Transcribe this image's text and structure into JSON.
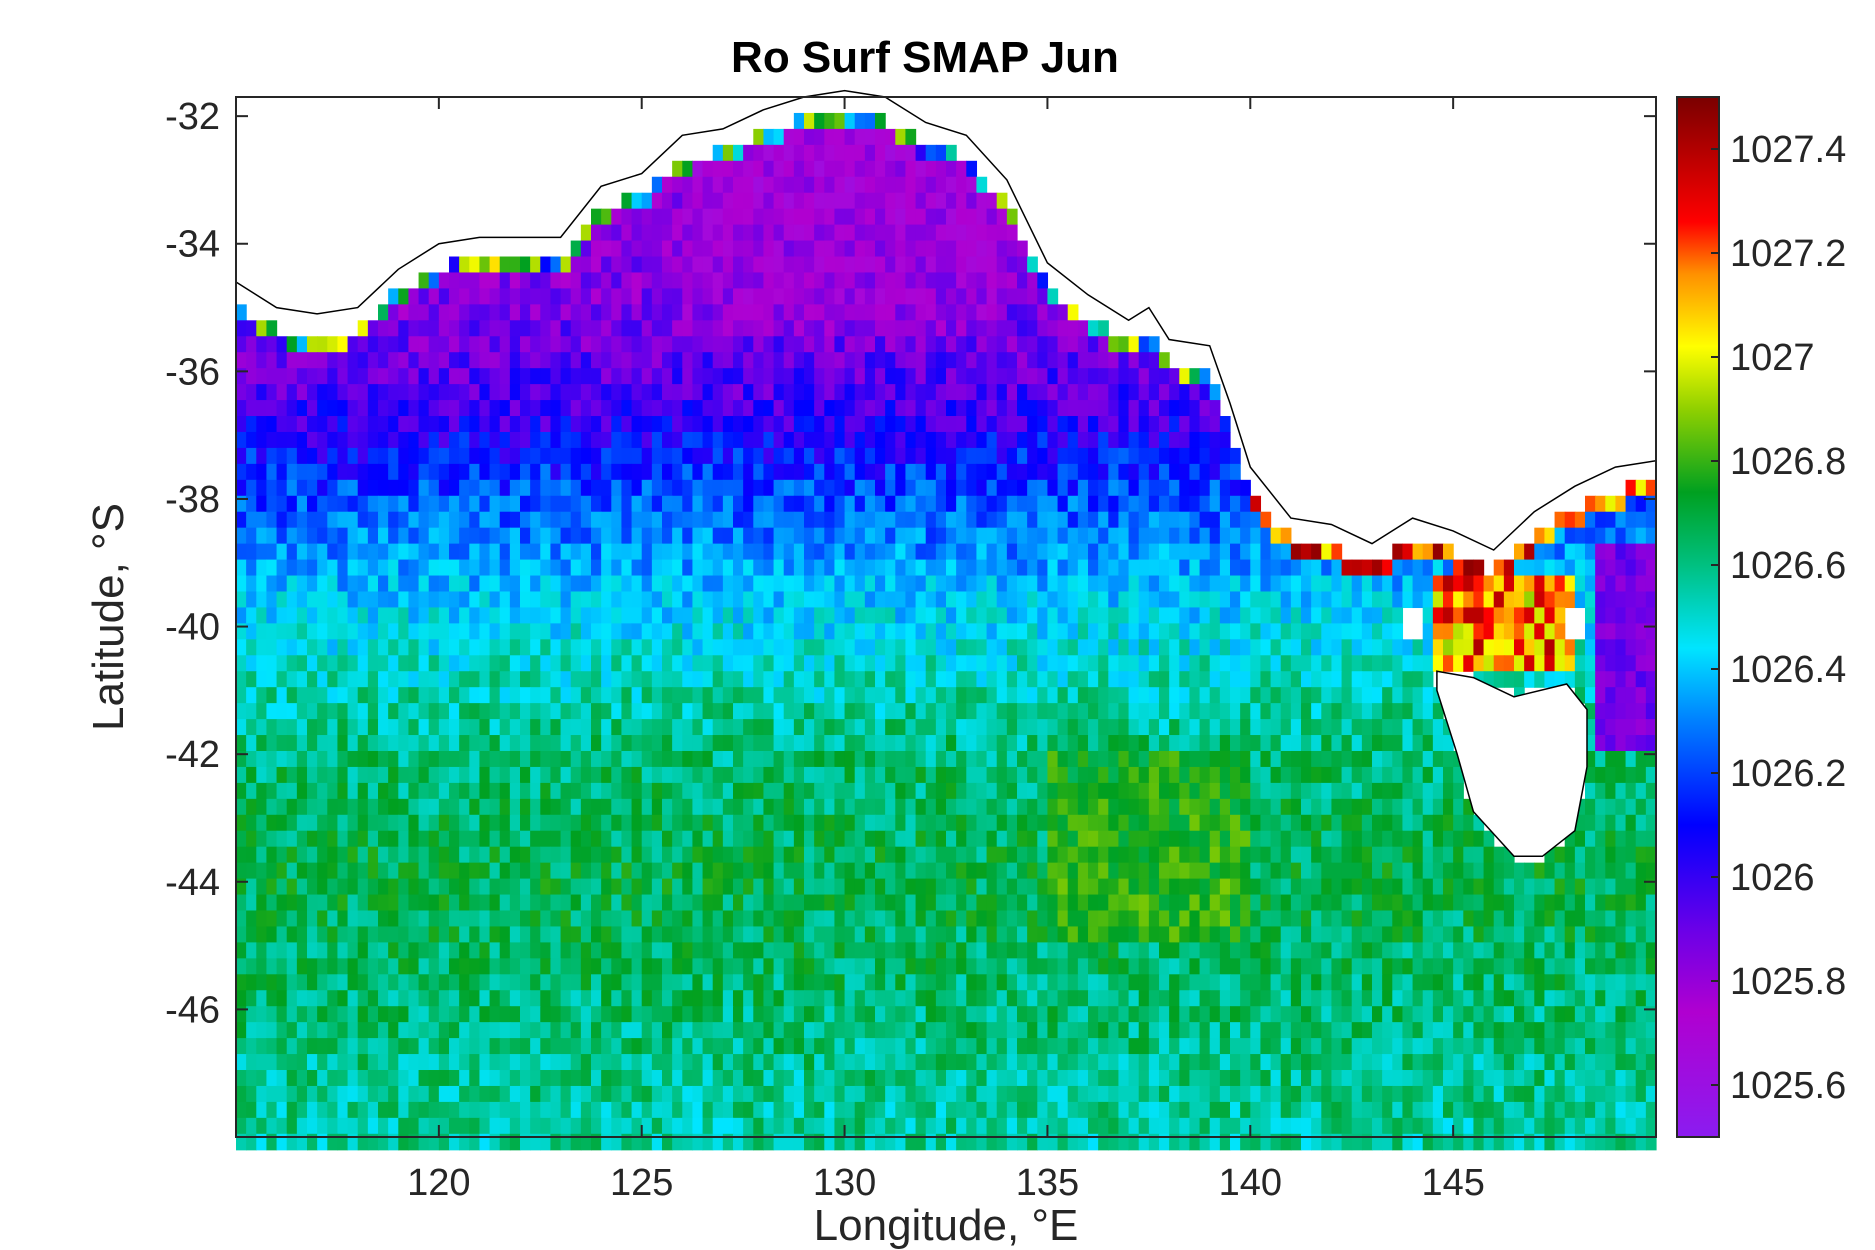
{
  "chart_data": {
    "type": "heatmap",
    "title": "Ro Surf SMAP Jun",
    "xlabel": "Longitude, °E",
    "ylabel": "Latitude, °S",
    "xlim": [
      115,
      150
    ],
    "ylim": [
      -48,
      -31.7
    ],
    "x_ticks": [
      120,
      125,
      130,
      135,
      140,
      145
    ],
    "x_tick_labels": [
      "120",
      "125",
      "130",
      "135",
      "140",
      "145"
    ],
    "y_ticks": [
      -32,
      -34,
      -36,
      -38,
      -40,
      -42,
      -44,
      -46
    ],
    "y_tick_labels": [
      "-32",
      "-34",
      "-36",
      "-38",
      "-40",
      "-42",
      "-44",
      "-46"
    ],
    "grid": false,
    "colormap": "jet-like (purple-blue-cyan-green-yellow-red-darkred)",
    "colorbar": {
      "min": 1025.5,
      "max": 1027.5,
      "ticks": [
        1025.6,
        1025.8,
        1026,
        1026.2,
        1026.4,
        1026.6,
        1026.8,
        1027,
        1027.2,
        1027.4
      ],
      "tick_labels": [
        "1025.6",
        "1025.8",
        "1026",
        "1026.2",
        "1026.4",
        "1026.6",
        "1026.8",
        "1027",
        "1027.2",
        "1027.4"
      ]
    },
    "grid_resolution_deg": 0.25,
    "field_summary": [
      {
        "lat": -33,
        "value": 1025.8
      },
      {
        "lat": -35,
        "value": 1025.85
      },
      {
        "lat": -36.5,
        "value": 1025.95
      },
      {
        "lat": -38,
        "value": 1026.15
      },
      {
        "lat": -40,
        "value": 1026.35
      },
      {
        "lat": -42,
        "value": 1026.5
      },
      {
        "lat": -44,
        "value": 1026.55
      },
      {
        "lat": -46,
        "value": 1026.5
      },
      {
        "lat": -48,
        "value": 1026.45
      }
    ],
    "colors": {
      "land": "#ffffff",
      "coast": "#000000",
      "nan_cells": "#ffffff"
    }
  }
}
